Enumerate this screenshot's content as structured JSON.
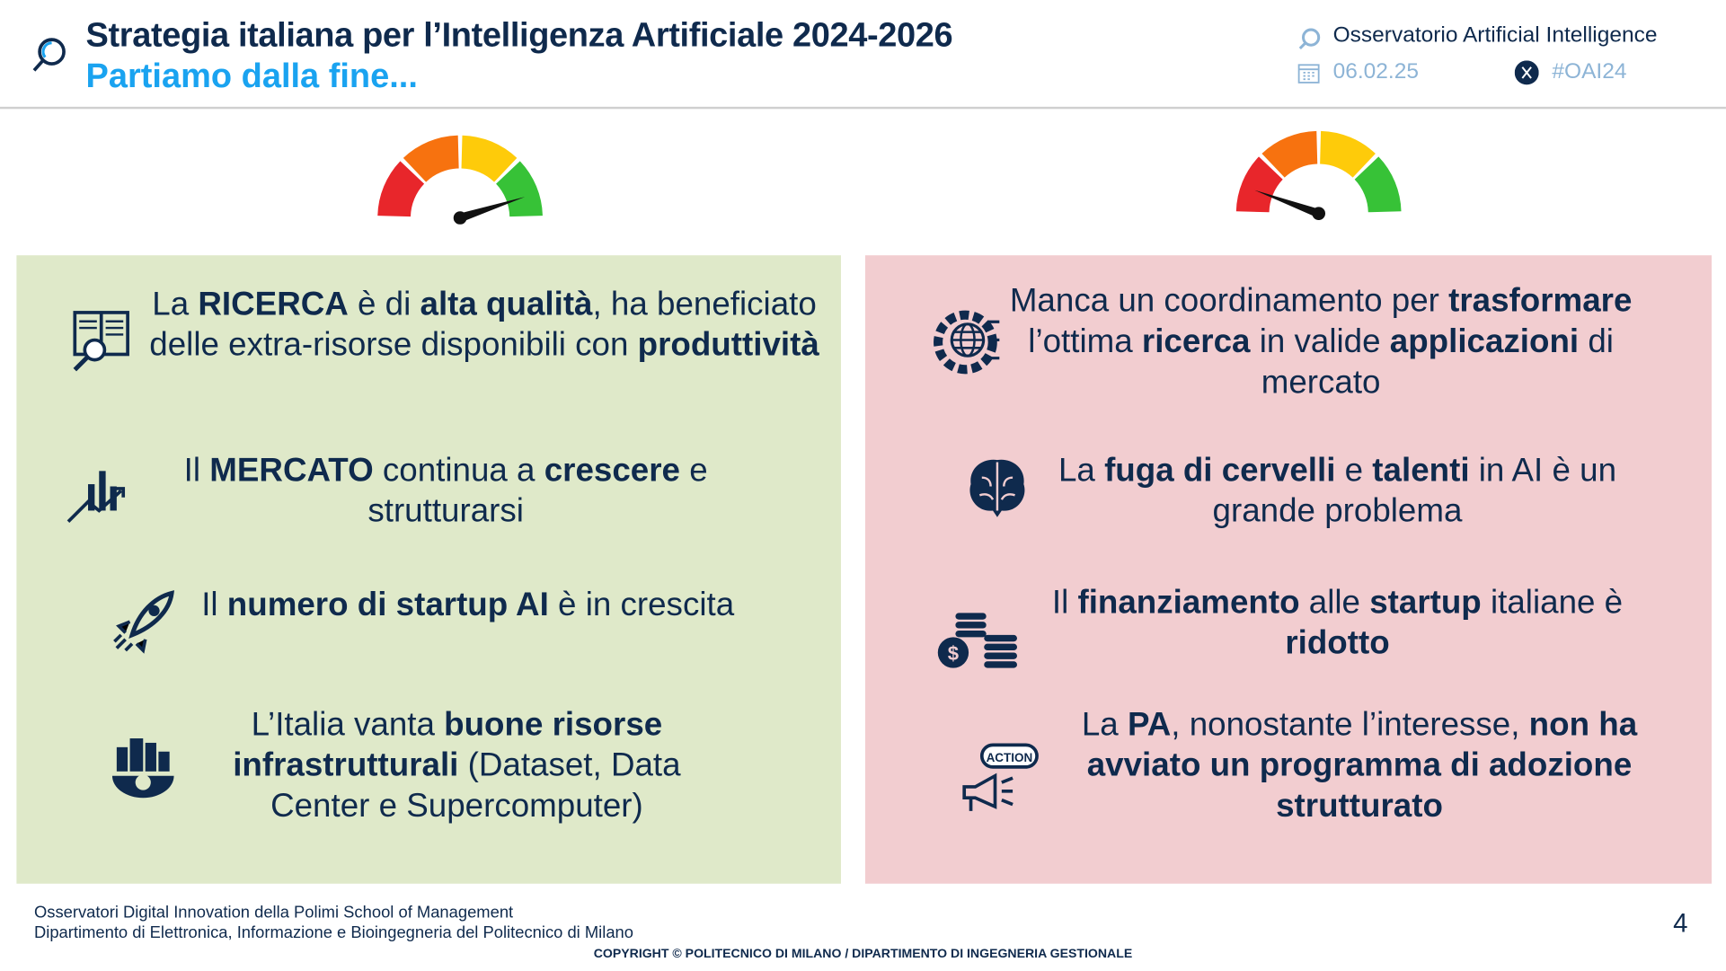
{
  "header": {
    "title": "Strategia italiana per l’Intelligenza Artificiale 2024-2026",
    "subtitle": "Partiamo dalla fine...",
    "observatory": "Osservatorio Artificial Intelligence",
    "date": "06.02.25",
    "hashtag": "#OAI24"
  },
  "gauges": {
    "left": {
      "level": "high",
      "colors": [
        "#e8262b",
        "#f7720f",
        "#fecb0a",
        "#37c237"
      ]
    },
    "right": {
      "level": "low",
      "colors": [
        "#e8262b",
        "#f7720f",
        "#fecb0a",
        "#37c237"
      ]
    }
  },
  "left_panel": {
    "color": "#dfe9c9",
    "items": [
      {
        "icon": "book-magnifier-icon",
        "parts": [
          [
            "La ",
            0
          ],
          [
            "RICERCA",
            1
          ],
          [
            " è di ",
            0
          ],
          [
            "alta qualità",
            1
          ],
          [
            ", ha beneficiato delle extra-risorse disponibili con ",
            0
          ],
          [
            "produttività",
            1
          ]
        ]
      },
      {
        "icon": "growth-chart-icon",
        "parts": [
          [
            "Il ",
            0
          ],
          [
            "MERCATO",
            1
          ],
          [
            " continua a ",
            0
          ],
          [
            "crescere",
            1
          ],
          [
            " e strutturarsi",
            0
          ]
        ]
      },
      {
        "icon": "rocket-icon",
        "parts": [
          [
            "Il ",
            0
          ],
          [
            "numero di startup AI",
            1
          ],
          [
            " è in crescita",
            0
          ]
        ]
      },
      {
        "icon": "city-gear-icon",
        "parts": [
          [
            "L’Italia vanta ",
            0
          ],
          [
            "buone risorse infrastrutturali",
            1
          ],
          [
            " (Dataset, Data Center e Supercomputer)",
            0
          ]
        ]
      }
    ]
  },
  "right_panel": {
    "color": "#f2cdd0",
    "items": [
      {
        "icon": "globe-gear-icon",
        "parts": [
          [
            "Manca un coordinamento per ",
            0
          ],
          [
            "trasformare",
            1
          ],
          [
            " l’ottima ",
            0
          ],
          [
            "ricerca",
            1
          ],
          [
            " in valide ",
            0
          ],
          [
            "applicazioni",
            1
          ],
          [
            " di mercato",
            0
          ]
        ]
      },
      {
        "icon": "brain-icon",
        "parts": [
          [
            "La ",
            0
          ],
          [
            "fuga di cervelli",
            1
          ],
          [
            " e ",
            0
          ],
          [
            "talenti",
            1
          ],
          [
            " in AI è un grande problema",
            0
          ]
        ]
      },
      {
        "icon": "coins-icon",
        "parts": [
          [
            "Il ",
            0
          ],
          [
            "finanziamento",
            1
          ],
          [
            " alle ",
            0
          ],
          [
            "startup",
            1
          ],
          [
            " italiane è ",
            0
          ],
          [
            "ridotto",
            1
          ]
        ]
      },
      {
        "icon": "action-megaphone-icon",
        "icon_text": "ACTION",
        "parts": [
          [
            "La ",
            0
          ],
          [
            "PA",
            1
          ],
          [
            ", nonostante l’interesse, ",
            0
          ],
          [
            "non ha avviato un programma di adozione strutturato",
            1
          ]
        ]
      }
    ]
  },
  "footer": {
    "line1": "Osservatori Digital Innovation della Polimi School of Management",
    "line2": "Dipartimento di Elettronica, Informazione e Bioingegneria del Politecnico di Milano",
    "copyright": "COPYRIGHT © POLITECNICO DI MILANO / DIPARTIMENTO DI INGEGNERIA GESTIONALE",
    "page": "4"
  }
}
